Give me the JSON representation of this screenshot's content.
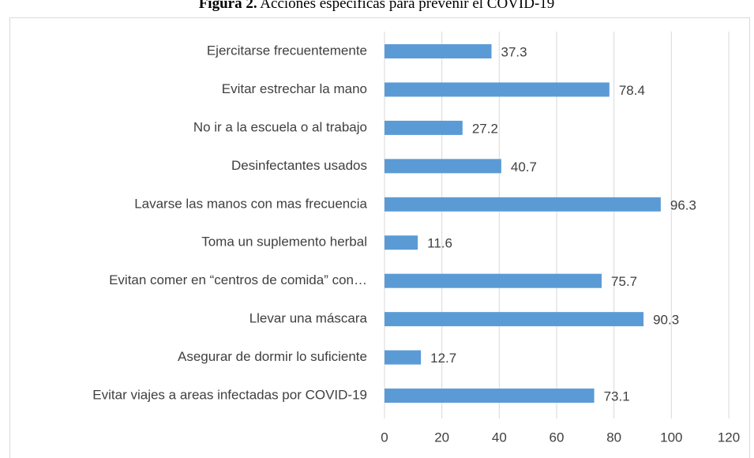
{
  "chart_data": {
    "type": "barh",
    "title_prefix": "Figura 2.",
    "title": "Acciones específicas para prevenir el COVID-19",
    "categories": [
      "Ejercitarse frecuentemente",
      "Evitar estrechar la mano",
      "No ir a la escuela o al trabajo",
      "Desinfectantes usados",
      "Lavarse las manos con mas frecuencia",
      "Toma un suplemento herbal",
      "Evitan comer en “centros de comida” con…",
      "Llevar una máscara",
      "Asegurar de dormir lo suficiente",
      "Evitar viajes a areas infectadas por COVID-19"
    ],
    "values": [
      37.3,
      78.4,
      27.2,
      40.7,
      96.3,
      11.6,
      75.7,
      90.3,
      12.7,
      73.1
    ],
    "color": "#5b9bd5",
    "xlim": [
      0,
      120
    ],
    "xticks": [
      0,
      20,
      40,
      60,
      80,
      100,
      120
    ],
    "grid": true
  }
}
